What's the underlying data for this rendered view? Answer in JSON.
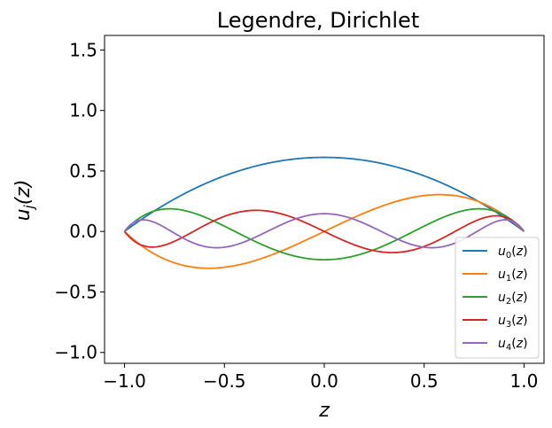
{
  "chart_data": {
    "type": "line",
    "title": "Legendre, Dirichlet",
    "xlabel": "z",
    "ylabel": "u_j(z)",
    "xlim": [
      -1.1,
      1.1
    ],
    "ylim": [
      -1.09,
      1.62
    ],
    "xticks": [
      -1.0,
      -0.5,
      0.0,
      0.5,
      1.0
    ],
    "xtick_labels": [
      "−1.0",
      "−0.5",
      "0.0",
      "0.5",
      "1.0"
    ],
    "yticks": [
      -1.0,
      -0.5,
      0.0,
      0.5,
      1.0,
      1.5
    ],
    "ytick_labels": [
      "−1.0",
      "−0.5",
      "0.0",
      "0.5",
      "1.0",
      "1.5"
    ],
    "grid": false,
    "legend_position": "lower-right",
    "series": [
      {
        "name": "u₀(z)",
        "sub": "0",
        "color": "#1f77b4"
      },
      {
        "name": "u₁(z)",
        "sub": "1",
        "color": "#ff7f0e"
      },
      {
        "name": "u₂(z)",
        "sub": "2",
        "color": "#2ca02c"
      },
      {
        "name": "u₃(z)",
        "sub": "3",
        "color": "#d62728"
      },
      {
        "name": "u₄(z)",
        "sub": "4",
        "color": "#9467bd"
      }
    ]
  }
}
